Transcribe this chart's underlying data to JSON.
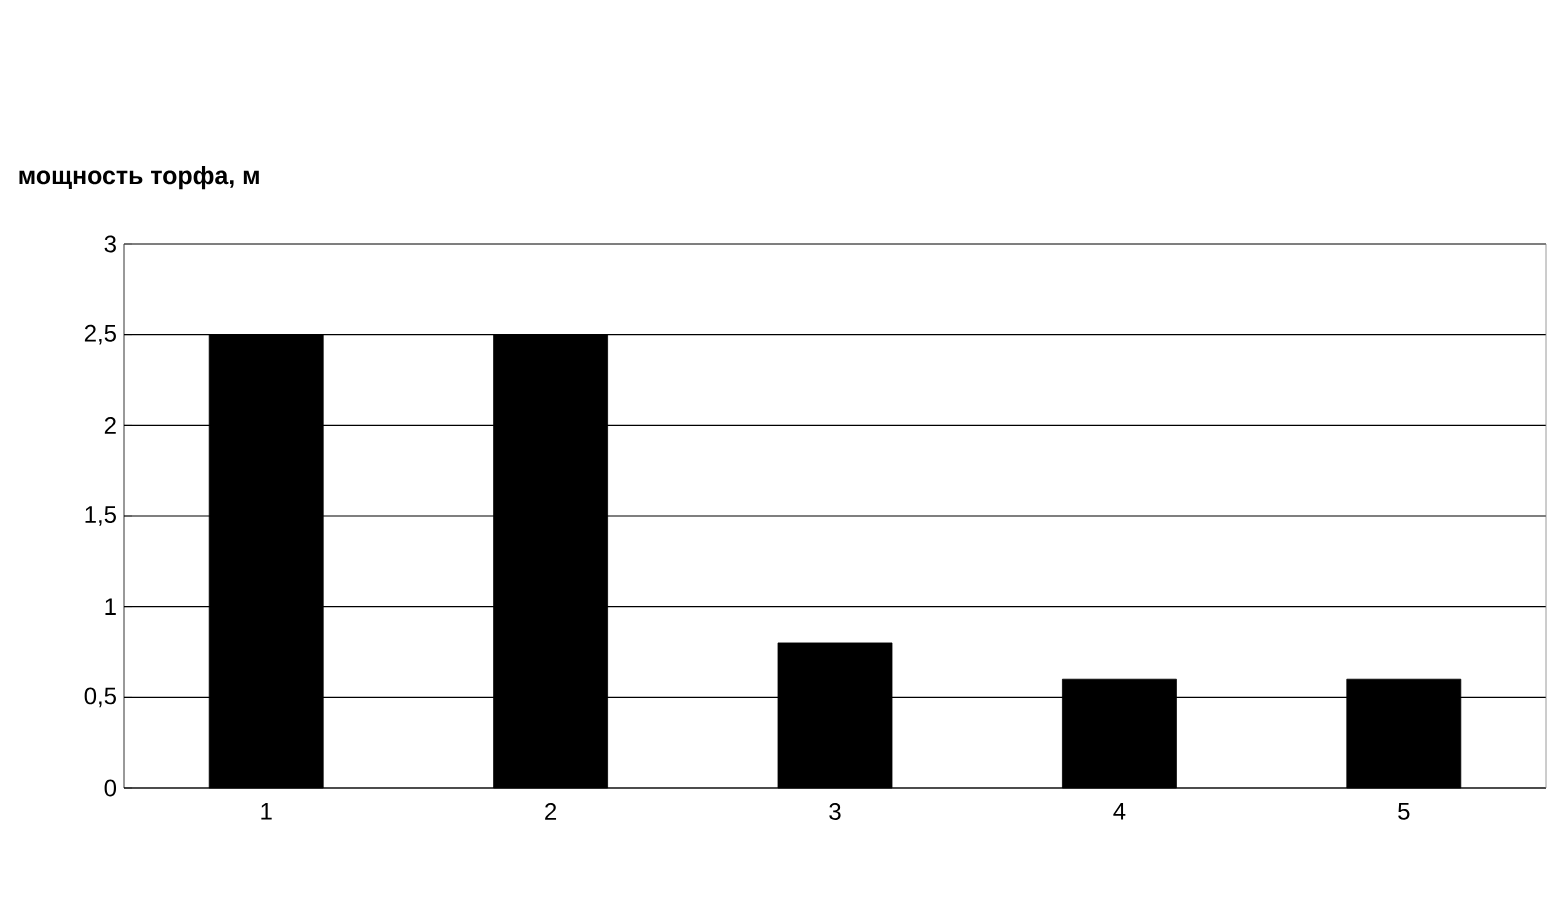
{
  "chart_data": {
    "type": "bar",
    "ylabel": "мощность торфа, м",
    "categories": [
      "1",
      "2",
      "3",
      "4",
      "5"
    ],
    "values": [
      2.5,
      2.5,
      0.8,
      0.6,
      0.6
    ],
    "color": "#000000",
    "ylim": [
      0,
      3
    ],
    "yticks": [
      0,
      {
        "value": 0.5,
        "label": "0,5"
      },
      1,
      {
        "value": 1.5,
        "label": "1,5"
      },
      2,
      {
        "value": 2.5,
        "label": "2,5"
      },
      3
    ],
    "grid": "y"
  }
}
